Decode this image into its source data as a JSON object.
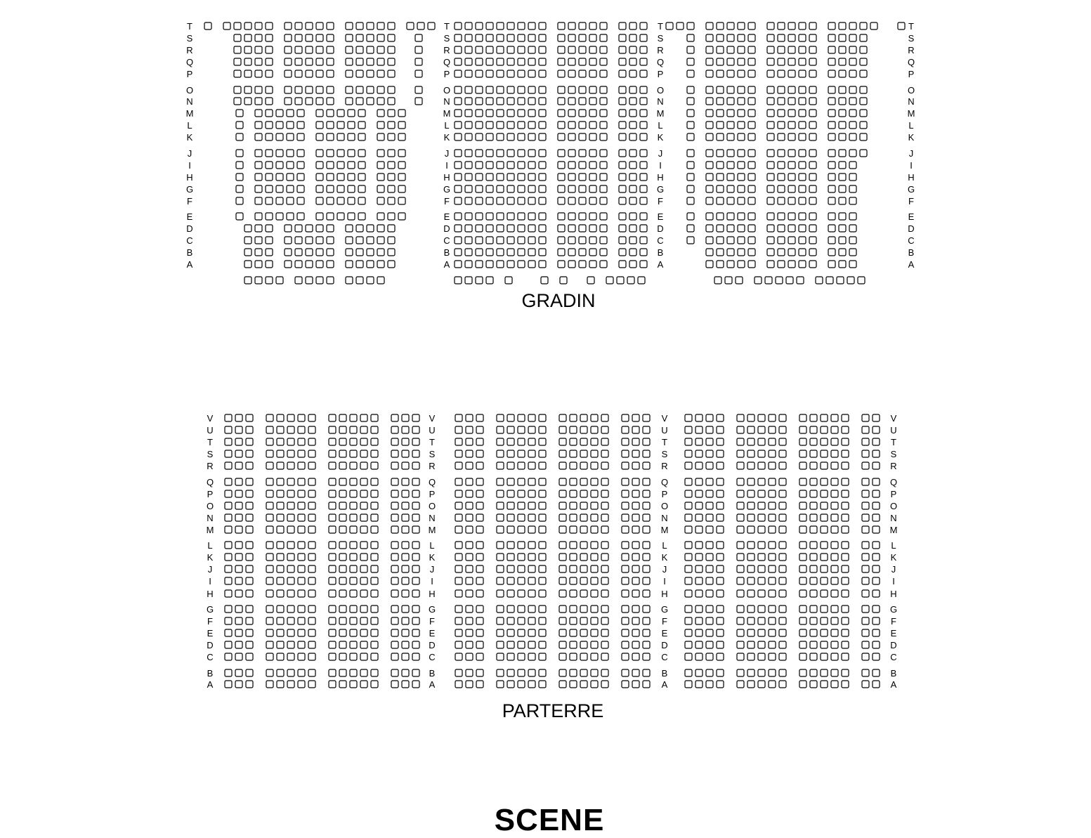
{
  "colors": {
    "seat_fill": "#ffffff",
    "seat_stroke": "#000000",
    "text": "#000000"
  },
  "stage_label": "SCENE",
  "sections": [
    {
      "title": "GRADIN",
      "row_labels": [
        "T",
        "S",
        "R",
        "Q",
        "P",
        "O",
        "N",
        "M",
        "L",
        "K",
        "J",
        "I",
        "H",
        "G",
        "F",
        "E",
        "D",
        "C",
        "B",
        "A"
      ],
      "blocks": [
        {
          "rows": [
            {
              "row": "T",
              "seats": "o ooooo ooooo ooooo ooo"
            },
            {
              "row": "S",
              "seats": "__ oooo ooooo ooooo  o"
            },
            {
              "row": "R",
              "seats": "__ oooo ooooo ooooo  o"
            },
            {
              "row": "Q",
              "seats": "__ oooo ooooo ooooo  o"
            },
            {
              "row": "P",
              "seats": "__ oooo ooooo ooooo  o"
            },
            {
              "row": "O",
              "seats": "__ oooo ooooo ooooo  o"
            },
            {
              "row": "N",
              "seats": "__ oooo ooooo ooooo  o"
            },
            {
              "row": "M",
              "seats": "___o ooooo ooooo ooo"
            },
            {
              "row": "L",
              "seats": "___o ooooo ooooo ooo"
            },
            {
              "row": "K",
              "seats": "___o ooooo ooooo ooo"
            },
            {
              "row": "J",
              "seats": "___o ooooo ooooo ooo"
            },
            {
              "row": "I",
              "seats": "___o ooooo ooooo ooo"
            },
            {
              "row": "H",
              "seats": "___o ooooo ooooo ooo"
            },
            {
              "row": "G",
              "seats": "___o ooooo ooooo ooo"
            },
            {
              "row": "F",
              "seats": "___o ooooo ooooo ooo"
            },
            {
              "row": "E",
              "seats": "___o ooooo ooooo ooo"
            },
            {
              "row": "D",
              "seats": "___ ooo ooooo ooooo"
            },
            {
              "row": "C",
              "seats": "___ ooo ooooo ooooo"
            },
            {
              "row": "B",
              "seats": "___ ooo ooooo ooooo"
            },
            {
              "row": "A",
              "seats": "___ ooo ooooo ooooo"
            },
            {
              "row": "",
              "seats": "___ oooo oooo oooo"
            }
          ]
        },
        {
          "rows": [
            {
              "row": "T",
              "seats": "ooooooooo ooooo ooo"
            },
            {
              "row": "S",
              "seats": "ooooooooo ooooo ooo"
            },
            {
              "row": "R",
              "seats": "ooooooooo ooooo ooo"
            },
            {
              "row": "Q",
              "seats": "ooooooooo ooooo ooo"
            },
            {
              "row": "P",
              "seats": "ooooooooo ooooo ooo"
            },
            {
              "row": "O",
              "seats": "ooooooooo ooooo ooo"
            },
            {
              "row": "N",
              "seats": "ooooooooo ooooo ooo"
            },
            {
              "row": "M",
              "seats": "ooooooooo ooooo ooo"
            },
            {
              "row": "L",
              "seats": "ooooooooo ooooo ooo"
            },
            {
              "row": "K",
              "seats": "ooooooooo ooooo ooo"
            },
            {
              "row": "J",
              "seats": "ooooooooo ooooo ooo"
            },
            {
              "row": "I",
              "seats": "ooooooooo ooooo ooo"
            },
            {
              "row": "H",
              "seats": "ooooooooo ooooo ooo"
            },
            {
              "row": "G",
              "seats": "ooooooooo ooooo ooo"
            },
            {
              "row": "F",
              "seats": "ooooooooo ooooo ooo"
            },
            {
              "row": "E",
              "seats": "ooooooooo ooooo ooo"
            },
            {
              "row": "D",
              "seats": "ooooooooo ooooo ooo"
            },
            {
              "row": "C",
              "seats": "ooooooooo ooooo ooo"
            },
            {
              "row": "B",
              "seats": "ooooooooo ooooo ooo"
            },
            {
              "row": "A",
              "seats": "ooooooooo ooooo ooo"
            },
            {
              "row": "",
              "seats": "oooo o   o o  o oooo"
            }
          ]
        },
        {
          "rows": [
            {
              "row": "T",
              "seats": "ooo ooooo ooooo ooooo  o"
            },
            {
              "row": "S",
              "seats": "__o ooooo ooooo oooo"
            },
            {
              "row": "R",
              "seats": "__o ooooo ooooo oooo"
            },
            {
              "row": "Q",
              "seats": "__o ooooo ooooo oooo"
            },
            {
              "row": "P",
              "seats": "__o ooooo ooooo oooo"
            },
            {
              "row": "O",
              "seats": "__o ooooo ooooo oooo"
            },
            {
              "row": "N",
              "seats": "__o ooooo ooooo oooo"
            },
            {
              "row": "M",
              "seats": "__o ooooo ooooo oooo"
            },
            {
              "row": "L",
              "seats": "__o ooooo ooooo oooo"
            },
            {
              "row": "K",
              "seats": "__o ooooo ooooo oooo"
            },
            {
              "row": "J",
              "seats": "__o ooooo ooooo oooo"
            },
            {
              "row": "I",
              "seats": "__o ooooo ooooo ooo"
            },
            {
              "row": "H",
              "seats": "__o ooooo ooooo ooo"
            },
            {
              "row": "G",
              "seats": "__o ooooo ooooo ooo"
            },
            {
              "row": "F",
              "seats": "__o ooooo ooooo ooo"
            },
            {
              "row": "E",
              "seats": "__o ooooo ooooo ooo"
            },
            {
              "row": "D",
              "seats": "__o ooooo ooooo ooo"
            },
            {
              "row": "C",
              "seats": "__o ooooo ooooo ooo"
            },
            {
              "row": "B",
              "seats": "___ ooooo ooooo ooo"
            },
            {
              "row": "A",
              "seats": "___ ooooo ooooo ooo"
            },
            {
              "row": "",
              "seats": "___  ooo ooooo ooooo"
            }
          ]
        }
      ]
    },
    {
      "title": "PARTERRE",
      "row_labels": [
        "V",
        "U",
        "T",
        "S",
        "R",
        "Q",
        "P",
        "O",
        "N",
        "M",
        "L",
        "K",
        "J",
        "I",
        "H",
        "G",
        "F",
        "E",
        "D",
        "C",
        "B",
        "A"
      ],
      "blocks": [
        {
          "pattern": "ooo ooooo ooooo ooo"
        },
        {
          "pattern": "ooo ooooo ooooo ooo"
        },
        {
          "pattern": "oooo ooooo ooooo oo"
        }
      ]
    }
  ]
}
